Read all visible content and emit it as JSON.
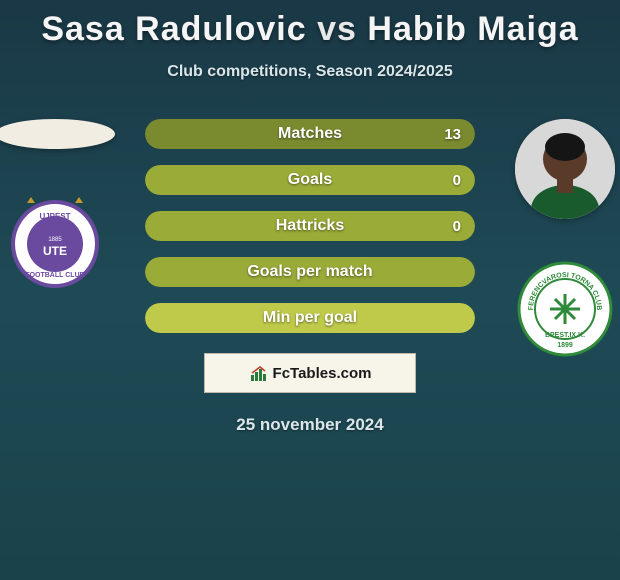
{
  "title": {
    "player1": "Sasa Radulovic",
    "vs": "vs",
    "player2": "Habib Maiga"
  },
  "subtitle": "Club competitions, Season 2024/2025",
  "bar_bg_color": "#0d2f38",
  "bar_colors": [
    "#7a8a2e",
    "#9aab38",
    "#bfca4a"
  ],
  "stats": [
    {
      "label": "Matches",
      "value": "13",
      "fill_pct": 100,
      "color_idx": 0
    },
    {
      "label": "Goals",
      "value": "0",
      "fill_pct": 100,
      "color_idx": 1
    },
    {
      "label": "Hattricks",
      "value": "0",
      "fill_pct": 100,
      "color_idx": 1
    },
    {
      "label": "Goals per match",
      "value": "",
      "fill_pct": 100,
      "color_idx": 1
    },
    {
      "label": "Min per goal",
      "value": "",
      "fill_pct": 100,
      "color_idx": 2
    }
  ],
  "brand": "FcTables.com",
  "date": "25 november 2024",
  "left_club": {
    "name": "Ujpest",
    "primary": "#6a4a9e",
    "secondary": "#ffffff",
    "star": "#c29a2f"
  },
  "right_club": {
    "name": "Ferencvaros",
    "primary": "#2f8a3a",
    "secondary": "#ffffff"
  },
  "right_player_skin": "#5a3a28"
}
